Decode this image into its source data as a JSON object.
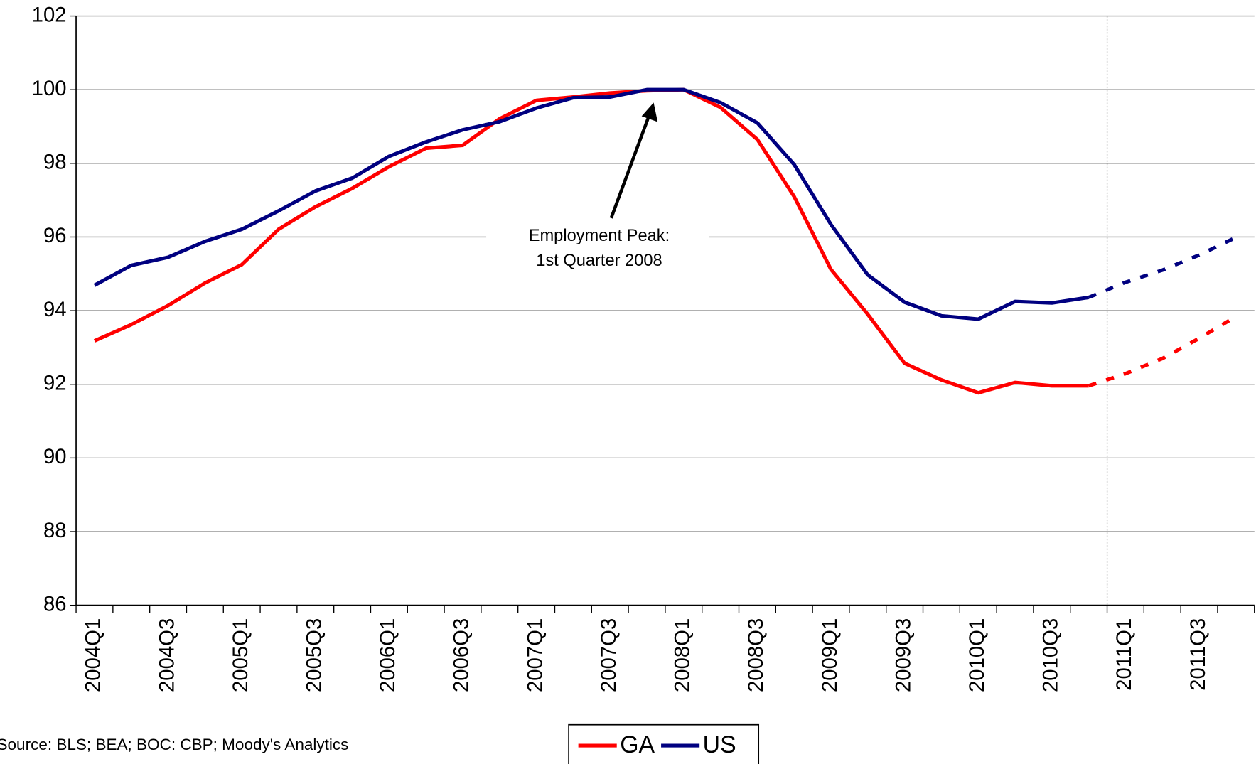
{
  "chart_data": {
    "type": "line",
    "categories": [
      "2004Q1",
      null,
      "2004Q3",
      null,
      "2005Q1",
      null,
      "2005Q3",
      null,
      "2006Q1",
      null,
      "2006Q3",
      null,
      "2007Q1",
      null,
      "2007Q3",
      null,
      "2008Q1",
      null,
      "2008Q3",
      null,
      "2009Q1",
      null,
      "2009Q3",
      null,
      "2010Q1",
      null,
      "2010Q3",
      null,
      "2011Q1",
      null,
      "2011Q3",
      null
    ],
    "series": [
      {
        "name": "GA",
        "color": "#ff0000",
        "values": [
          93.18,
          93.62,
          94.14,
          94.75,
          95.25,
          96.21,
          96.82,
          97.32,
          97.91,
          98.41,
          98.49,
          99.21,
          99.71,
          99.8,
          99.91,
          99.97,
          100,
          99.52,
          98.65,
          97.1,
          95.12,
          93.9,
          92.57,
          92.12,
          91.77,
          92.05,
          91.96,
          91.96,
          92.29,
          92.7,
          93.25,
          93.84
        ]
      },
      {
        "name": "US",
        "color": "#000080",
        "values": [
          94.69,
          95.23,
          95.45,
          95.88,
          96.21,
          96.71,
          97.25,
          97.6,
          98.19,
          98.58,
          98.91,
          99.13,
          99.5,
          99.78,
          99.8,
          100,
          100,
          99.65,
          99.1,
          97.97,
          96.34,
          94.97,
          94.23,
          93.86,
          93.77,
          94.25,
          94.21,
          94.36,
          94.77,
          95.1,
          95.51,
          95.99
        ]
      }
    ],
    "forecast_from": 27,
    "ylim": [
      86,
      102
    ],
    "yticks": [
      86,
      88,
      90,
      92,
      94,
      96,
      98,
      100,
      102
    ],
    "grid": true,
    "annotation": [
      "Employment Peak:",
      "1st Quarter 2008"
    ],
    "source": "Source: BLS; BEA; BOC: CBP; Moody's Analytics",
    "legend": "bottom"
  }
}
